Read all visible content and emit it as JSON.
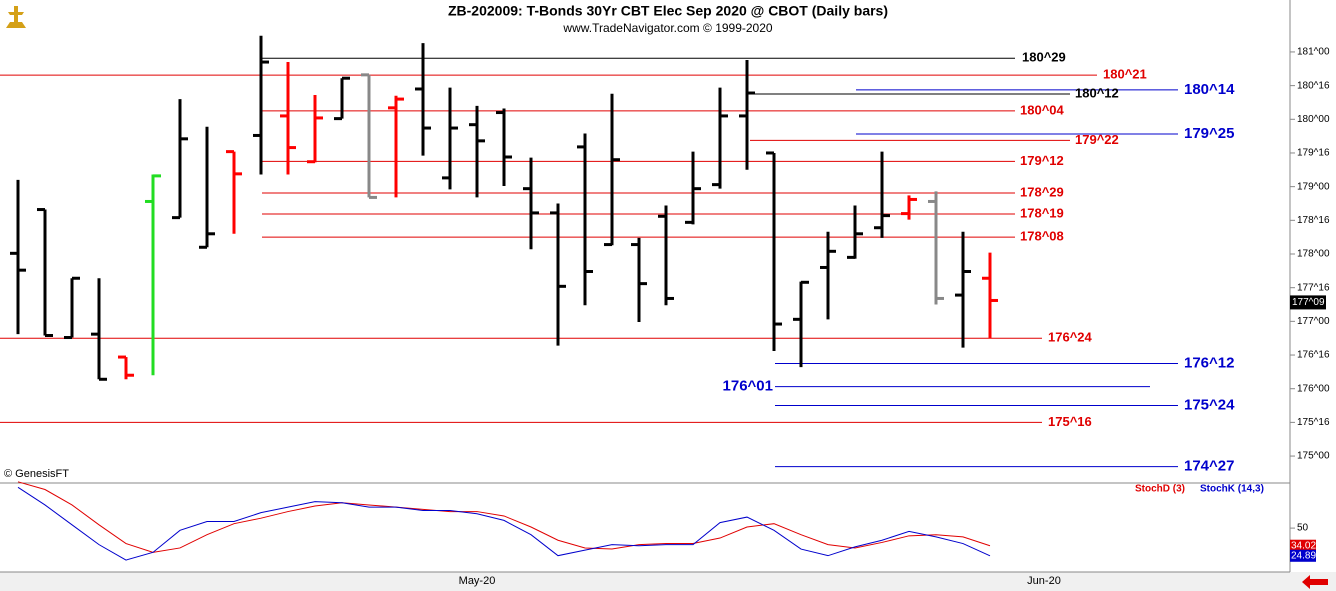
{
  "chart_data": [
    {
      "type": "ohlc",
      "title": "ZB-202009:  T-Bonds 30Yr CBT Elec Sep 2020 @ CBOT  (Daily bars)",
      "subtitle": "www.TradeNavigator.com © 1999-2020",
      "credit": "© GenesisFT",
      "categories": [
        null,
        null,
        null,
        null,
        null,
        null,
        null,
        null,
        null,
        null,
        null,
        null,
        null,
        null,
        null,
        null,
        null,
        "May-20",
        null,
        null,
        null,
        null,
        null,
        null,
        null,
        null,
        null,
        null,
        null,
        null,
        null,
        null,
        null,
        null,
        null,
        null,
        null,
        null,
        "Jun-20",
        null,
        null,
        null,
        null,
        null,
        null,
        null,
        null,
        null
      ],
      "open": [
        178.01,
        178.66,
        176.76,
        176.81,
        176.47,
        178.78,
        178.54,
        178.1,
        179.52,
        179.76,
        180.05,
        179.37,
        180.01,
        180.66,
        180.17,
        180.45,
        179.13,
        179.92,
        180.1,
        178.97,
        178.61,
        179.59,
        178.14,
        178.14,
        178.56,
        178.47,
        179.03,
        180.05,
        179.5,
        177.03,
        177.8,
        177.95,
        178.39,
        178.6,
        178.78,
        177.39,
        177.64,
        null,
        null,
        null,
        null,
        null,
        null,
        null,
        null,
        null,
        null,
        null
      ],
      "high": [
        179.1,
        178.66,
        177.64,
        177.64,
        176.47,
        179.18,
        180.3,
        179.89,
        179.52,
        181.24,
        180.85,
        180.36,
        180.61,
        180.66,
        180.35,
        181.13,
        180.47,
        180.2,
        180.16,
        179.43,
        178.75,
        179.79,
        180.38,
        178.24,
        178.72,
        179.52,
        180.47,
        180.88,
        179.5,
        177.59,
        178.33,
        178.72,
        179.52,
        178.87,
        178.93,
        178.33,
        178.02,
        null,
        null,
        null,
        null,
        null,
        null,
        null,
        null,
        null,
        null,
        null
      ],
      "low": [
        176.81,
        176.79,
        176.76,
        176.14,
        176.14,
        176.2,
        178.54,
        178.1,
        178.3,
        179.18,
        179.18,
        179.36,
        180.01,
        178.84,
        178.84,
        179.46,
        178.96,
        178.84,
        179.01,
        178.07,
        176.64,
        177.24,
        178.13,
        176.99,
        177.24,
        178.44,
        178.97,
        179.25,
        176.56,
        176.32,
        177.03,
        177.93,
        178.24,
        178.51,
        177.25,
        176.61,
        176.75,
        null,
        null,
        null,
        null,
        null,
        null,
        null,
        null,
        null,
        null,
        null
      ],
      "close": [
        177.76,
        176.79,
        177.64,
        176.14,
        176.2,
        179.16,
        179.71,
        178.3,
        179.19,
        180.85,
        179.58,
        180.02,
        180.61,
        178.84,
        180.3,
        179.87,
        179.87,
        179.68,
        179.44,
        178.61,
        177.52,
        177.74,
        179.4,
        177.56,
        177.34,
        178.97,
        180.05,
        180.39,
        176.96,
        177.58,
        178.04,
        178.3,
        178.57,
        178.81,
        177.34,
        177.74,
        177.31,
        null,
        null,
        null,
        null,
        null,
        null,
        null,
        null,
        null,
        null,
        null
      ],
      "bar_colors": [
        "#000000",
        "#000000",
        "#000000",
        "#000000",
        "#ff0000",
        "#22dd22",
        "#000000",
        "#000000",
        "#ff0000",
        "#000000",
        "#ff0000",
        "#ff0000",
        "#000000",
        "#888888",
        "#ff0000",
        "#000000",
        "#000000",
        "#000000",
        "#000000",
        "#000000",
        "#000000",
        "#000000",
        "#000000",
        "#000000",
        "#000000",
        "#000000",
        "#000000",
        "#000000",
        "#000000",
        "#000000",
        "#000000",
        "#000000",
        "#000000",
        "#ff0000",
        "#888888",
        "#000000",
        "#ff0000",
        null,
        null,
        null,
        null,
        null,
        null,
        null,
        null,
        null,
        null,
        null
      ],
      "ylim": [
        174.6,
        181.4
      ],
      "yticks": [
        {
          "value": 175,
          "label": "175^00"
        },
        {
          "value": 175.5,
          "label": "175^16"
        },
        {
          "value": 176,
          "label": "176^00"
        },
        {
          "value": 176.5,
          "label": "176^16"
        },
        {
          "value": 177,
          "label": "177^00"
        },
        {
          "value": 177.5,
          "label": "177^16"
        },
        {
          "value": 178,
          "label": "178^00"
        },
        {
          "value": 178.5,
          "label": "178^16"
        },
        {
          "value": 179,
          "label": "179^00"
        },
        {
          "value": 179.5,
          "label": "179^16"
        },
        {
          "value": 180,
          "label": "180^00"
        },
        {
          "value": 180.5,
          "label": "180^16"
        },
        {
          "value": 181,
          "label": "181^00"
        }
      ],
      "levels": [
        {
          "value": 180.90625,
          "label": "180^29",
          "color": "#000000"
        },
        {
          "value": 180.65625,
          "label": "180^21",
          "color": "#e00000"
        },
        {
          "value": 180.4375,
          "label": "180^14",
          "color": "#0000cc"
        },
        {
          "value": 180.375,
          "label": "180^12",
          "color": "#000000"
        },
        {
          "value": 180.125,
          "label": "180^04",
          "color": "#e00000"
        },
        {
          "value": 179.78125,
          "label": "179^25",
          "color": "#0000cc"
        },
        {
          "value": 179.6875,
          "label": "179^22",
          "color": "#e00000"
        },
        {
          "value": 179.375,
          "label": "179^12",
          "color": "#e00000"
        },
        {
          "value": 178.90625,
          "label": "178^29",
          "color": "#e00000"
        },
        {
          "value": 178.59375,
          "label": "178^19",
          "color": "#e00000"
        },
        {
          "value": 178.25,
          "label": "178^08",
          "color": "#e00000"
        },
        {
          "value": 176.75,
          "label": "176^24",
          "color": "#e00000"
        },
        {
          "value": 176.375,
          "label": "176^12",
          "color": "#0000cc"
        },
        {
          "value": 176.03125,
          "label": "176^01",
          "color": "#0000cc"
        },
        {
          "value": 175.75,
          "label": "175^24",
          "color": "#0000cc"
        },
        {
          "value": 175.5,
          "label": "175^16",
          "color": "#e00000"
        },
        {
          "value": 174.84375,
          "label": "174^27",
          "color": "#0000cc"
        }
      ],
      "last_price": {
        "value": 177.28125,
        "label": "177^09"
      }
    },
    {
      "type": "line",
      "series": [
        {
          "name": "StochD (3)",
          "color": "#e00000",
          "values": [
            92,
            85,
            71,
            53,
            36,
            28,
            32,
            44,
            54,
            59,
            65,
            70,
            73,
            71,
            69,
            67,
            65,
            65,
            61,
            51,
            39,
            32,
            31,
            35,
            36,
            36,
            41,
            51,
            54,
            44,
            35,
            32,
            37,
            43,
            44,
            42,
            34.02,
            null,
            null,
            null,
            null,
            null,
            null,
            null,
            null,
            null,
            null,
            null
          ]
        },
        {
          "name": "StochK (14,3)",
          "color": "#0000cc",
          "values": [
            87,
            71,
            53,
            35,
            21,
            28,
            48,
            56,
            56,
            64,
            69,
            74,
            73,
            69,
            69,
            66,
            66,
            63,
            57,
            44,
            25,
            30,
            35,
            34,
            35,
            35,
            55,
            60,
            48,
            31,
            25,
            33,
            39,
            47,
            42,
            36,
            24.89,
            null,
            null,
            null,
            null,
            null,
            null,
            null,
            null,
            null,
            null,
            null
          ]
        }
      ],
      "ylim": [
        12,
        90
      ],
      "yticks": [
        50
      ]
    }
  ]
}
